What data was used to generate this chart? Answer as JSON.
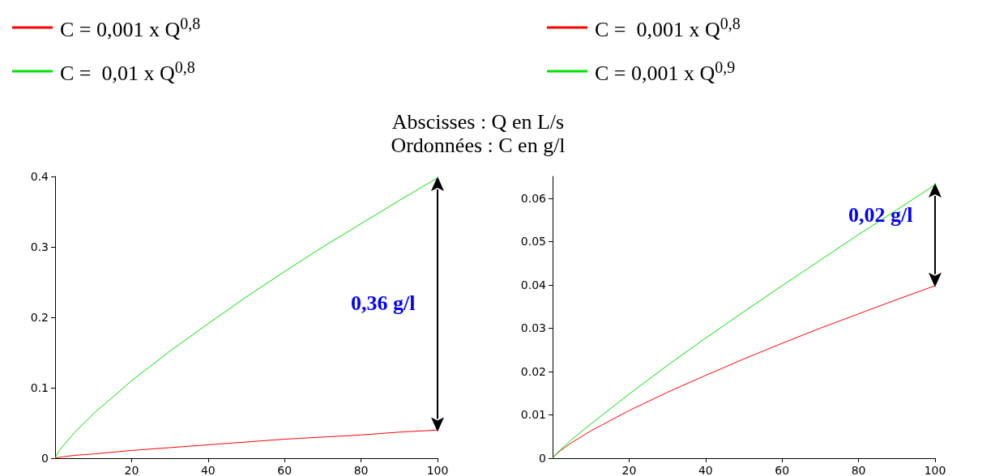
{
  "chart_data": [
    {
      "type": "line",
      "x": [
        0,
        1,
        2,
        5,
        10,
        20,
        30,
        40,
        50,
        60,
        70,
        80,
        90,
        100
      ],
      "series": [
        {
          "name": "C = 0,001 x Q$^{0,8}$",
          "color": "#ff0000",
          "values": [
            0,
            0.001,
            0.002,
            0.004,
            0.006,
            0.011,
            0.015,
            0.019,
            0.023,
            0.027,
            0.03,
            0.033,
            0.037,
            0.04
          ]
        },
        {
          "name": "C =  0,01 x Q$^{0,8}$",
          "color": "#00e000",
          "values": [
            0,
            0.01,
            0.017,
            0.036,
            0.063,
            0.11,
            0.152,
            0.191,
            0.229,
            0.265,
            0.3,
            0.333,
            0.366,
            0.398
          ]
        }
      ],
      "xlim": [
        0,
        100
      ],
      "xticks": [
        20,
        40,
        60,
        80,
        100
      ],
      "ylim": [
        0,
        0.4
      ],
      "yticks": [
        0,
        0.1,
        0.2,
        0.3,
        0.4
      ],
      "grid": false,
      "legend": "top left",
      "marker": "none",
      "line_style": "solid",
      "annotations": [
        "Abscisses : Q en L/s",
        "Ordonnées : C en g/l",
        "0,36 g/l"
      ]
    },
    {
      "type": "line",
      "x": [
        0,
        1,
        2,
        5,
        10,
        20,
        30,
        40,
        50,
        60,
        70,
        80,
        90,
        100
      ],
      "series": [
        {
          "name": "C =  0,001 x Q$^{0,8}$",
          "color": "#ff0000",
          "values": [
            0,
            0.001,
            0.0017,
            0.0036,
            0.0063,
            0.011,
            0.0152,
            0.0191,
            0.0229,
            0.0265,
            0.03,
            0.0333,
            0.0366,
            0.0398
          ]
        },
        {
          "name": "C = 0,001 x Q$^{0,9}$",
          "color": "#00e000",
          "values": [
            0,
            0.001,
            0.0019,
            0.0043,
            0.0079,
            0.0148,
            0.0214,
            0.0277,
            0.0338,
            0.0398,
            0.0457,
            0.0516,
            0.0573,
            0.0631
          ]
        }
      ],
      "xlim": [
        0,
        100
      ],
      "xticks": [
        20,
        40,
        60,
        80,
        100
      ],
      "ylim": [
        0,
        0.065
      ],
      "yticks": [
        0,
        0.01,
        0.02,
        0.03,
        0.04,
        0.05,
        0.06
      ],
      "grid": false,
      "legend": "top",
      "marker": "none",
      "line_style": "solid",
      "annotations": [
        "0,02 g/l"
      ]
    }
  ]
}
